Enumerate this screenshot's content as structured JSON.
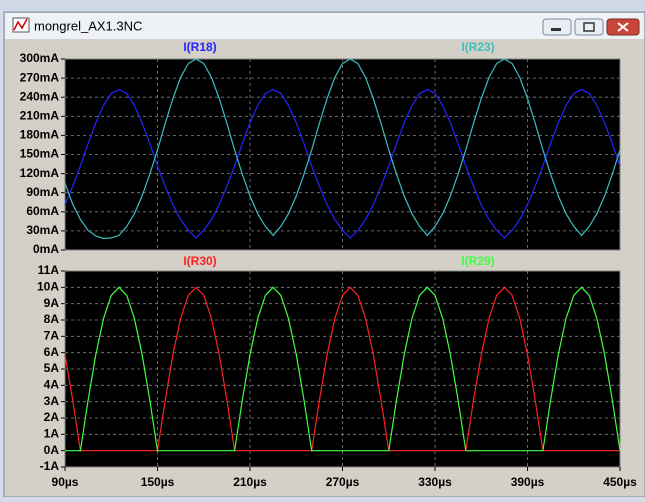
{
  "window": {
    "title": "mongrel_AX1.3NC"
  },
  "chart_data": [
    {
      "type": "line",
      "x": [
        90,
        95,
        100,
        105,
        110,
        115,
        120,
        125,
        130,
        135,
        140,
        145,
        150,
        155,
        160,
        165,
        170,
        175,
        180,
        185,
        190,
        195,
        200,
        205,
        210,
        215,
        220,
        225,
        230,
        235,
        240,
        245,
        250,
        255,
        260,
        265,
        270,
        275,
        280,
        285,
        290,
        295,
        300,
        305,
        310,
        315,
        320,
        325,
        330,
        335,
        340,
        345,
        350,
        355,
        360,
        365,
        370,
        375,
        380,
        385,
        390,
        395,
        400,
        405,
        410,
        415,
        420,
        425,
        430,
        435,
        440,
        445,
        450
      ],
      "xlim": [
        90,
        450
      ],
      "xticks": [
        90,
        150,
        210,
        270,
        330,
        390,
        450
      ],
      "ylim": [
        0,
        300
      ],
      "yticks": [
        {
          "value": 0,
          "label": "0mA"
        },
        {
          "value": 30,
          "label": "30mA"
        },
        {
          "value": 60,
          "label": "60mA"
        },
        {
          "value": 90,
          "label": "90mA"
        },
        {
          "value": 120,
          "label": "120mA"
        },
        {
          "value": 150,
          "label": "150mA"
        },
        {
          "value": 180,
          "label": "180mA"
        },
        {
          "value": 210,
          "label": "210mA"
        },
        {
          "value": 240,
          "label": "240mA"
        },
        {
          "value": 270,
          "label": "270mA"
        },
        {
          "value": 300,
          "label": "300mA"
        }
      ],
      "grid": true,
      "series": [
        {
          "name": "I(R18)",
          "color": "#2424ff",
          "values": [
            71,
            100,
            132,
            167,
            200,
            227,
            246,
            252,
            246,
            227,
            200,
            167,
            132,
            100,
            71,
            48,
            31,
            19,
            31,
            48,
            71,
            100,
            132,
            167,
            200,
            227,
            246,
            252,
            246,
            227,
            200,
            167,
            132,
            100,
            71,
            48,
            31,
            19,
            31,
            48,
            71,
            100,
            132,
            167,
            200,
            227,
            246,
            252,
            246,
            227,
            200,
            167,
            132,
            100,
            71,
            48,
            31,
            19,
            31,
            48,
            71,
            100,
            132,
            167,
            200,
            227,
            246,
            252,
            246,
            227,
            200,
            167,
            132
          ]
        },
        {
          "name": "I(R23)",
          "color": "#3cc0c0",
          "values": [
            105,
            72,
            48,
            31,
            22,
            18,
            19,
            23,
            37,
            57,
            85,
            119,
            157,
            199,
            238,
            271,
            293,
            300,
            293,
            271,
            238,
            199,
            157,
            119,
            85,
            57,
            37,
            23,
            37,
            57,
            85,
            119,
            157,
            199,
            238,
            271,
            293,
            300,
            293,
            271,
            238,
            199,
            157,
            119,
            85,
            57,
            37,
            23,
            37,
            57,
            85,
            119,
            157,
            199,
            238,
            271,
            293,
            300,
            293,
            271,
            238,
            199,
            157,
            119,
            85,
            57,
            37,
            23,
            37,
            57,
            85,
            119,
            157
          ]
        }
      ]
    },
    {
      "type": "line",
      "x": [
        90,
        95,
        100,
        105,
        110,
        115,
        120,
        125,
        130,
        135,
        140,
        145,
        150,
        155,
        160,
        165,
        170,
        175,
        180,
        185,
        190,
        195,
        200,
        205,
        210,
        215,
        220,
        225,
        230,
        235,
        240,
        245,
        250,
        255,
        260,
        265,
        270,
        275,
        280,
        285,
        290,
        295,
        300,
        305,
        310,
        315,
        320,
        325,
        330,
        335,
        340,
        345,
        350,
        355,
        360,
        365,
        370,
        375,
        380,
        385,
        390,
        395,
        400,
        405,
        410,
        415,
        420,
        425,
        430,
        435,
        440,
        445,
        450
      ],
      "xlim": [
        90,
        450
      ],
      "xticks": [
        {
          "value": 90,
          "label": "90µs"
        },
        {
          "value": 150,
          "label": "150µs"
        },
        {
          "value": 210,
          "label": "210µs"
        },
        {
          "value": 270,
          "label": "270µs"
        },
        {
          "value": 330,
          "label": "330µs"
        },
        {
          "value": 390,
          "label": "390µs"
        },
        {
          "value": 450,
          "label": "450µs"
        }
      ],
      "ylim": [
        -1,
        11
      ],
      "yticks": [
        {
          "value": -1,
          "label": "-1A"
        },
        {
          "value": 0,
          "label": "0A"
        },
        {
          "value": 1,
          "label": "1A"
        },
        {
          "value": 2,
          "label": "2A"
        },
        {
          "value": 3,
          "label": "3A"
        },
        {
          "value": 4,
          "label": "4A"
        },
        {
          "value": 5,
          "label": "5A"
        },
        {
          "value": 6,
          "label": "6A"
        },
        {
          "value": 7,
          "label": "7A"
        },
        {
          "value": 8,
          "label": "8A"
        },
        {
          "value": 9,
          "label": "9A"
        },
        {
          "value": 10,
          "label": "10A"
        },
        {
          "value": 11,
          "label": "11A"
        }
      ],
      "grid": true,
      "series": [
        {
          "name": "I(R30)",
          "color": "#ff2020",
          "values": [
            5.88,
            3.09,
            0,
            0,
            0,
            0,
            0,
            0,
            0,
            0,
            0,
            0,
            0,
            3.09,
            5.88,
            8.09,
            9.51,
            10,
            9.51,
            8.09,
            5.88,
            3.09,
            0,
            0,
            0,
            0,
            0,
            0,
            0,
            0,
            0,
            0,
            0,
            3.09,
            5.88,
            8.09,
            9.51,
            10,
            9.51,
            8.09,
            5.88,
            3.09,
            0,
            0,
            0,
            0,
            0,
            0,
            0,
            0,
            0,
            0,
            0,
            3.09,
            5.88,
            8.09,
            9.51,
            10,
            9.51,
            8.09,
            5.88,
            3.09,
            0,
            0,
            0,
            0,
            0,
            0,
            0,
            0,
            0,
            0,
            0
          ]
        },
        {
          "name": "I(R29)",
          "color": "#40ff40",
          "values": [
            0,
            0,
            0,
            3.09,
            5.88,
            8.09,
            9.51,
            10,
            9.51,
            8.09,
            5.88,
            3.09,
            0,
            0,
            0,
            0,
            0,
            0,
            0,
            0,
            0,
            0,
            0,
            3.09,
            5.88,
            8.09,
            9.51,
            10,
            9.51,
            8.09,
            5.88,
            3.09,
            0,
            0,
            0,
            0,
            0,
            0,
            0,
            0,
            0,
            0,
            0,
            3.09,
            5.88,
            8.09,
            9.51,
            10,
            9.51,
            8.09,
            5.88,
            3.09,
            0,
            0,
            0,
            0,
            0,
            0,
            0,
            0,
            0,
            0,
            0,
            3.09,
            5.88,
            8.09,
            9.51,
            10,
            9.51,
            8.09,
            5.88,
            3.09,
            0
          ]
        }
      ]
    }
  ]
}
